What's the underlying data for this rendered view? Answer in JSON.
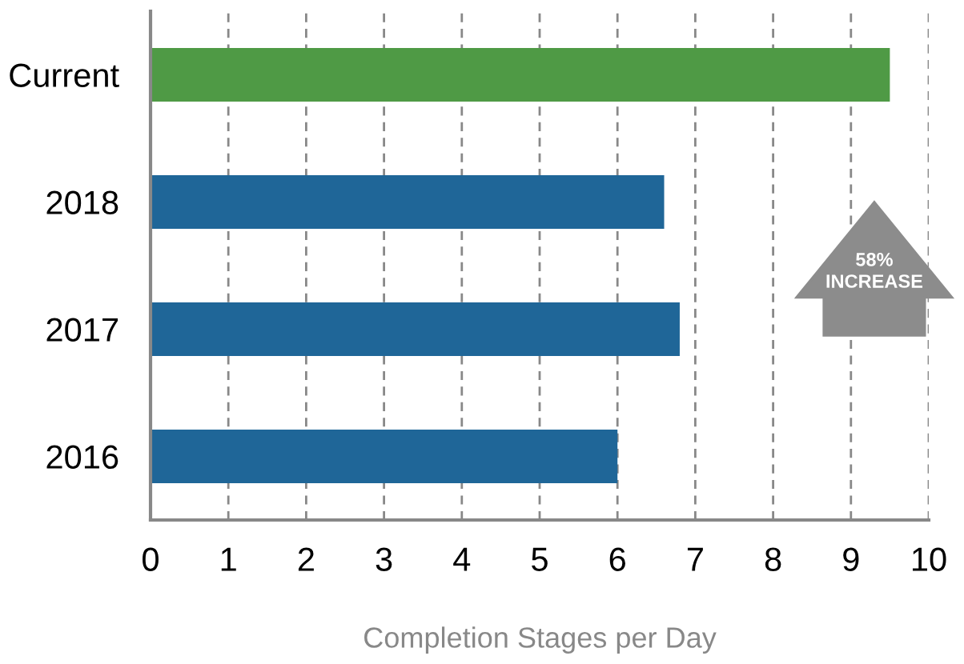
{
  "chart_data": {
    "type": "bar",
    "orientation": "horizontal",
    "xlabel": "Completion Stages per Day",
    "categories": [
      "Current",
      "2018",
      "2017",
      "2016"
    ],
    "values": [
      9.5,
      6.6,
      6.8,
      6.0
    ],
    "colors": [
      "#4f9a45",
      "#1f6698",
      "#1f6698",
      "#1f6698"
    ],
    "xlim": [
      0,
      10
    ],
    "xticks": [
      0,
      1,
      2,
      3,
      4,
      5,
      6,
      7,
      8,
      9,
      10
    ],
    "grid": "x",
    "annotations": [
      "58%\nINCREASE"
    ]
  }
}
